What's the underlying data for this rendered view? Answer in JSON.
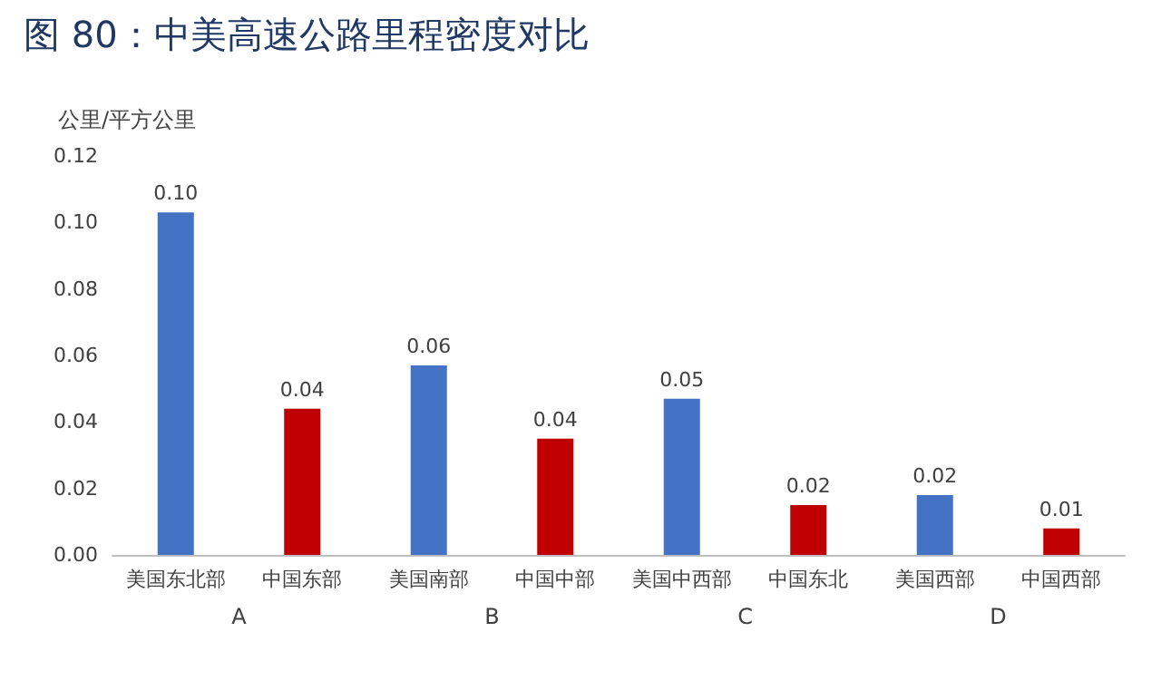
{
  "chart_data": {
    "type": "bar",
    "title": "图 80：中美高速公路里程密度对比",
    "ylabel": "公里/平方公里",
    "categories": [
      "美国东北部",
      "中国东部",
      "美国南部",
      "中国中部",
      "美国中西部",
      "中国东北",
      "美国西部",
      "中国西部"
    ],
    "values": [
      0.103,
      0.044,
      0.057,
      0.035,
      0.047,
      0.015,
      0.018,
      0.008
    ],
    "value_labels": [
      "0.10",
      "0.04",
      "0.06",
      "0.04",
      "0.05",
      "0.02",
      "0.02",
      "0.01"
    ],
    "colors": [
      "#4472c4",
      "#c00000",
      "#4472c4",
      "#c00000",
      "#4472c4",
      "#c00000",
      "#4472c4",
      "#c00000"
    ],
    "ylim": [
      0,
      0.12
    ],
    "yticks": [
      {
        "value": 0,
        "label": "0.00"
      },
      {
        "value": 0.02,
        "label": "0.02"
      },
      {
        "value": 0.04,
        "label": "0.04"
      },
      {
        "value": 0.06,
        "label": "0.06"
      },
      {
        "value": 0.08,
        "label": "0.08"
      },
      {
        "value": 0.1,
        "label": "0.10"
      },
      {
        "value": 0.12,
        "label": "0.12"
      }
    ],
    "grid": false,
    "annotations": [
      "A",
      "B",
      "C",
      "D"
    ]
  }
}
